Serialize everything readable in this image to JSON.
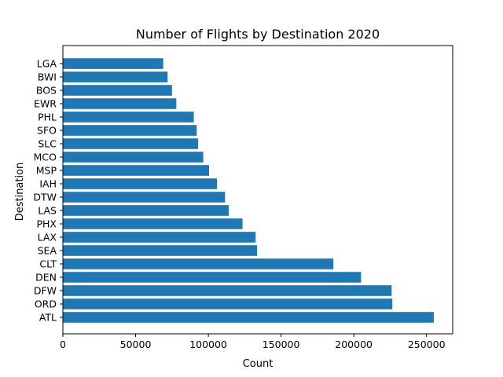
{
  "chart_data": {
    "type": "bar",
    "orientation": "horizontal",
    "title": "Number of Flights by Destination 2020",
    "xlabel": "Count",
    "ylabel": "Destination",
    "categories": [
      "ATL",
      "ORD",
      "DFW",
      "DEN",
      "CLT",
      "SEA",
      "LAX",
      "PHX",
      "LAS",
      "DTW",
      "IAH",
      "MSP",
      "MCO",
      "SLC",
      "SFO",
      "PHL",
      "EWR",
      "BOS",
      "BWI",
      "LGA"
    ],
    "values": [
      255000,
      226500,
      226000,
      205000,
      186000,
      133500,
      132500,
      123500,
      114000,
      111500,
      106000,
      100500,
      96500,
      93000,
      92000,
      90000,
      78000,
      75000,
      72000,
      69000
    ],
    "xlim": [
      0,
      268000
    ],
    "xticks": [
      0,
      50000,
      100000,
      150000,
      200000,
      250000
    ],
    "xtick_labels": [
      "0",
      "50000",
      "100000",
      "150000",
      "200000",
      "250000"
    ],
    "bar_color": "#1f77b4",
    "grid": false,
    "legend": "none"
  }
}
